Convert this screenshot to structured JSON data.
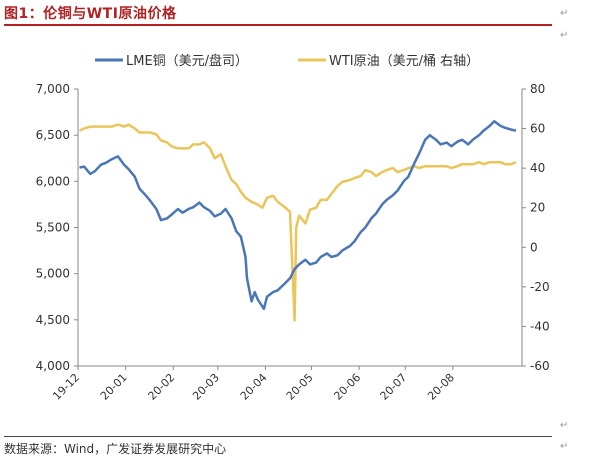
{
  "header": {
    "title": "图1：伦铜与WTI原油价格"
  },
  "footer": {
    "source": "数据来源：Wind，广发证券发展研究中心"
  },
  "colors": {
    "lme": "#4a76b8",
    "wti": "#e8c65a",
    "title": "#b22222",
    "axis": "#888888",
    "text": "#333333"
  },
  "chart_data": {
    "type": "line",
    "legend_placement": "top",
    "grid": false,
    "x_ticks": [
      "19-12",
      "20-01",
      "20-02",
      "20-03",
      "20-04",
      "20-05",
      "20-06",
      "20-07",
      "20-08"
    ],
    "x_range": [
      "2019-12-01",
      "2020-09-15"
    ],
    "y_left": {
      "ticks": [
        "4,000",
        "4,500",
        "5,000",
        "5,500",
        "6,000",
        "6,500",
        "7,000"
      ],
      "range": [
        4000,
        7000
      ]
    },
    "y_right": {
      "ticks": [
        "-60",
        "-40",
        "-20",
        "0",
        "20",
        "40",
        "60",
        "80"
      ],
      "range": [
        -60,
        80
      ]
    },
    "series": [
      {
        "name": "LME铜（美元/盘司）",
        "axis": "left",
        "points": [
          [
            "2019-12-02",
            6150
          ],
          [
            "2019-12-05",
            6160
          ],
          [
            "2019-12-09",
            6080
          ],
          [
            "2019-12-12",
            6110
          ],
          [
            "2019-12-16",
            6180
          ],
          [
            "2019-12-19",
            6200
          ],
          [
            "2019-12-23",
            6240
          ],
          [
            "2019-12-27",
            6270
          ],
          [
            "2019-12-31",
            6180
          ],
          [
            "2020-01-03",
            6130
          ],
          [
            "2020-01-07",
            6050
          ],
          [
            "2020-01-10",
            5920
          ],
          [
            "2020-01-14",
            5850
          ],
          [
            "2020-01-17",
            5790
          ],
          [
            "2020-01-21",
            5700
          ],
          [
            "2020-01-24",
            5580
          ],
          [
            "2020-01-28",
            5600
          ],
          [
            "2020-01-31",
            5640
          ],
          [
            "2020-02-04",
            5700
          ],
          [
            "2020-02-07",
            5660
          ],
          [
            "2020-02-11",
            5700
          ],
          [
            "2020-02-14",
            5720
          ],
          [
            "2020-02-18",
            5770
          ],
          [
            "2020-02-21",
            5720
          ],
          [
            "2020-02-25",
            5680
          ],
          [
            "2020-02-28",
            5620
          ],
          [
            "2020-03-03",
            5650
          ],
          [
            "2020-03-06",
            5700
          ],
          [
            "2020-03-10",
            5600
          ],
          [
            "2020-03-13",
            5460
          ],
          [
            "2020-03-16",
            5400
          ],
          [
            "2020-03-19",
            5180
          ],
          [
            "2020-03-20",
            4950
          ],
          [
            "2020-03-23",
            4700
          ],
          [
            "2020-03-25",
            4800
          ],
          [
            "2020-03-27",
            4720
          ],
          [
            "2020-03-31",
            4620
          ],
          [
            "2020-04-02",
            4750
          ],
          [
            "2020-04-06",
            4800
          ],
          [
            "2020-04-09",
            4820
          ],
          [
            "2020-04-14",
            4900
          ],
          [
            "2020-04-17",
            4950
          ],
          [
            "2020-04-20",
            5050
          ],
          [
            "2020-04-23",
            5100
          ],
          [
            "2020-04-27",
            5150
          ],
          [
            "2020-04-30",
            5100
          ],
          [
            "2020-05-04",
            5120
          ],
          [
            "2020-05-07",
            5180
          ],
          [
            "2020-05-11",
            5220
          ],
          [
            "2020-05-14",
            5180
          ],
          [
            "2020-05-18",
            5200
          ],
          [
            "2020-05-21",
            5250
          ],
          [
            "2020-05-26",
            5300
          ],
          [
            "2020-05-29",
            5350
          ],
          [
            "2020-06-02",
            5450
          ],
          [
            "2020-06-05",
            5500
          ],
          [
            "2020-06-09",
            5600
          ],
          [
            "2020-06-12",
            5650
          ],
          [
            "2020-06-16",
            5750
          ],
          [
            "2020-06-19",
            5800
          ],
          [
            "2020-06-23",
            5850
          ],
          [
            "2020-06-26",
            5900
          ],
          [
            "2020-06-30",
            6000
          ],
          [
            "2020-07-03",
            6050
          ],
          [
            "2020-07-07",
            6200
          ],
          [
            "2020-07-10",
            6300
          ],
          [
            "2020-07-14",
            6450
          ],
          [
            "2020-07-17",
            6500
          ],
          [
            "2020-07-21",
            6450
          ],
          [
            "2020-07-24",
            6400
          ],
          [
            "2020-07-28",
            6420
          ],
          [
            "2020-07-31",
            6380
          ],
          [
            "2020-08-04",
            6430
          ],
          [
            "2020-08-07",
            6450
          ],
          [
            "2020-08-11",
            6400
          ],
          [
            "2020-08-14",
            6450
          ],
          [
            "2020-08-18",
            6500
          ],
          [
            "2020-08-21",
            6550
          ],
          [
            "2020-08-25",
            6600
          ],
          [
            "2020-08-28",
            6650
          ],
          [
            "2020-09-01",
            6600
          ],
          [
            "2020-09-04",
            6580
          ],
          [
            "2020-09-08",
            6560
          ],
          [
            "2020-09-11",
            6550
          ]
        ]
      },
      {
        "name": "WTI原油（美元/桶 右轴）",
        "axis": "right",
        "points": [
          [
            "2019-12-02",
            59
          ],
          [
            "2019-12-05",
            60
          ],
          [
            "2019-12-09",
            61
          ],
          [
            "2019-12-12",
            61
          ],
          [
            "2019-12-16",
            61
          ],
          [
            "2019-12-19",
            61
          ],
          [
            "2019-12-23",
            61
          ],
          [
            "2019-12-27",
            62
          ],
          [
            "2019-12-31",
            61
          ],
          [
            "2020-01-03",
            62
          ],
          [
            "2020-01-07",
            60
          ],
          [
            "2020-01-10",
            58
          ],
          [
            "2020-01-14",
            58
          ],
          [
            "2020-01-17",
            58
          ],
          [
            "2020-01-21",
            57
          ],
          [
            "2020-01-24",
            54
          ],
          [
            "2020-01-28",
            53
          ],
          [
            "2020-01-31",
            51
          ],
          [
            "2020-02-04",
            50
          ],
          [
            "2020-02-07",
            50
          ],
          [
            "2020-02-11",
            50
          ],
          [
            "2020-02-14",
            52
          ],
          [
            "2020-02-18",
            52
          ],
          [
            "2020-02-21",
            53
          ],
          [
            "2020-02-25",
            50
          ],
          [
            "2020-02-28",
            45
          ],
          [
            "2020-03-03",
            47
          ],
          [
            "2020-03-06",
            41
          ],
          [
            "2020-03-10",
            34
          ],
          [
            "2020-03-13",
            32
          ],
          [
            "2020-03-16",
            28
          ],
          [
            "2020-03-19",
            25
          ],
          [
            "2020-03-23",
            23
          ],
          [
            "2020-03-26",
            22
          ],
          [
            "2020-03-30",
            20
          ],
          [
            "2020-04-02",
            25
          ],
          [
            "2020-04-06",
            26
          ],
          [
            "2020-04-09",
            23
          ],
          [
            "2020-04-14",
            20
          ],
          [
            "2020-04-17",
            18
          ],
          [
            "2020-04-20",
            -37
          ],
          [
            "2020-04-21",
            10
          ],
          [
            "2020-04-23",
            16
          ],
          [
            "2020-04-27",
            12
          ],
          [
            "2020-04-30",
            19
          ],
          [
            "2020-05-04",
            20
          ],
          [
            "2020-05-07",
            24
          ],
          [
            "2020-05-11",
            24
          ],
          [
            "2020-05-14",
            27
          ],
          [
            "2020-05-18",
            31
          ],
          [
            "2020-05-21",
            33
          ],
          [
            "2020-05-26",
            34
          ],
          [
            "2020-05-29",
            35
          ],
          [
            "2020-06-02",
            36
          ],
          [
            "2020-06-05",
            39
          ],
          [
            "2020-06-09",
            38
          ],
          [
            "2020-06-12",
            36
          ],
          [
            "2020-06-16",
            38
          ],
          [
            "2020-06-19",
            39
          ],
          [
            "2020-06-23",
            40
          ],
          [
            "2020-06-26",
            38
          ],
          [
            "2020-06-30",
            39
          ],
          [
            "2020-07-03",
            40
          ],
          [
            "2020-07-07",
            41
          ],
          [
            "2020-07-10",
            40
          ],
          [
            "2020-07-14",
            41
          ],
          [
            "2020-07-17",
            41
          ],
          [
            "2020-07-21",
            41
          ],
          [
            "2020-07-24",
            41
          ],
          [
            "2020-07-28",
            41
          ],
          [
            "2020-07-31",
            40
          ],
          [
            "2020-08-04",
            41
          ],
          [
            "2020-08-07",
            42
          ],
          [
            "2020-08-11",
            42
          ],
          [
            "2020-08-14",
            42
          ],
          [
            "2020-08-18",
            43
          ],
          [
            "2020-08-21",
            42
          ],
          [
            "2020-08-25",
            43
          ],
          [
            "2020-08-28",
            43
          ],
          [
            "2020-09-01",
            43
          ],
          [
            "2020-09-04",
            42
          ],
          [
            "2020-09-08",
            42
          ],
          [
            "2020-09-11",
            43
          ]
        ]
      }
    ]
  }
}
